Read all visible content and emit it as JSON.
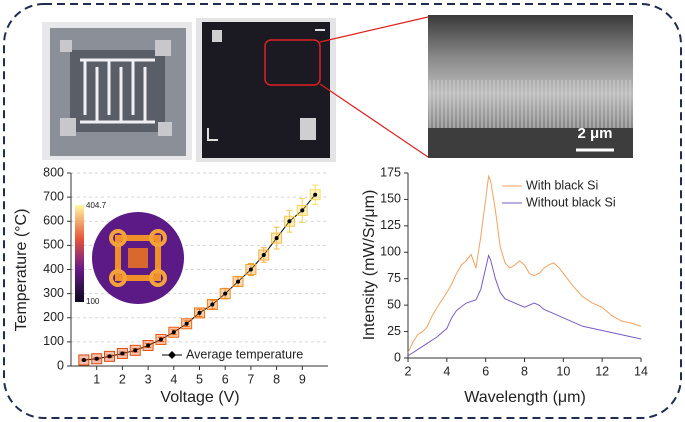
{
  "figure": {
    "scale_bar": "2 μm"
  },
  "chart_data": [
    {
      "type": "line",
      "xlabel": "Voltage (V)",
      "ylabel": "Temperature (°C)",
      "xlim": [
        0,
        10
      ],
      "xticks": [
        1,
        2,
        3,
        4,
        5,
        6,
        7,
        8,
        9
      ],
      "ylim": [
        0,
        800
      ],
      "yticks": [
        0,
        100,
        200,
        300,
        400,
        500,
        600,
        700,
        800
      ],
      "grid": true,
      "legend": "lower center",
      "colorbar": {
        "max": 404.7,
        "min": 100
      },
      "series": [
        {
          "name": "Average temperature",
          "color": "#000000",
          "x": [
            0.5,
            1,
            1.5,
            2,
            2.5,
            3,
            3.5,
            4,
            4.5,
            5,
            5.5,
            6,
            6.5,
            7,
            7.5,
            8,
            8.5,
            9,
            9.5
          ],
          "values": [
            25,
            30,
            40,
            52,
            65,
            85,
            110,
            140,
            175,
            220,
            255,
            300,
            350,
            400,
            460,
            530,
            600,
            645,
            710
          ],
          "errors": [
            3,
            4,
            5,
            6,
            7,
            8,
            9,
            10,
            12,
            15,
            18,
            22,
            20,
            25,
            30,
            45,
            45,
            50,
            40
          ]
        }
      ]
    },
    {
      "type": "line",
      "xlabel": "Wavelength (μm)",
      "ylabel": "Intensity (mW/Sr/μm)",
      "xlim": [
        2,
        14
      ],
      "xticks": [
        2,
        4,
        6,
        8,
        10,
        12,
        14
      ],
      "ylim": [
        0,
        175
      ],
      "yticks": [
        0,
        25,
        50,
        75,
        100,
        125,
        150,
        175
      ],
      "grid": false,
      "legend": "upper right",
      "series": [
        {
          "name": "With black Si",
          "color": "#f4a261",
          "x": [
            2,
            2.25,
            2.5,
            2.75,
            3,
            3.25,
            3.5,
            3.75,
            4,
            4.25,
            4.5,
            4.75,
            5,
            5.25,
            5.5,
            5.75,
            6,
            6.15,
            6.25,
            6.5,
            6.75,
            7,
            7.25,
            7.5,
            7.75,
            8,
            8.25,
            8.5,
            8.75,
            9,
            9.25,
            9.5,
            9.75,
            10,
            10.5,
            11,
            11.5,
            12,
            12.5,
            13,
            13.5,
            14
          ],
          "values": [
            5,
            15,
            22,
            25,
            30,
            40,
            48,
            55,
            62,
            70,
            80,
            88,
            92,
            98,
            85,
            115,
            150,
            172,
            168,
            140,
            105,
            90,
            85,
            88,
            92,
            88,
            80,
            78,
            80,
            85,
            88,
            90,
            86,
            80,
            68,
            58,
            52,
            48,
            40,
            35,
            33,
            30
          ]
        },
        {
          "name": "Without black Si",
          "color": "#7b5cc4",
          "x": [
            2,
            2.5,
            3,
            3.5,
            4,
            4.25,
            4.5,
            5,
            5.5,
            5.75,
            6,
            6.15,
            6.25,
            6.5,
            6.75,
            7,
            7.5,
            8,
            8.5,
            8.75,
            9,
            9.5,
            10,
            10.5,
            11,
            11.5,
            12,
            12.5,
            13,
            13.5,
            14
          ],
          "values": [
            2,
            8,
            14,
            20,
            28,
            38,
            45,
            52,
            55,
            65,
            85,
            97,
            93,
            75,
            62,
            56,
            52,
            48,
            52,
            50,
            46,
            42,
            38,
            34,
            30,
            28,
            26,
            24,
            22,
            20,
            18
          ]
        }
      ]
    }
  ]
}
